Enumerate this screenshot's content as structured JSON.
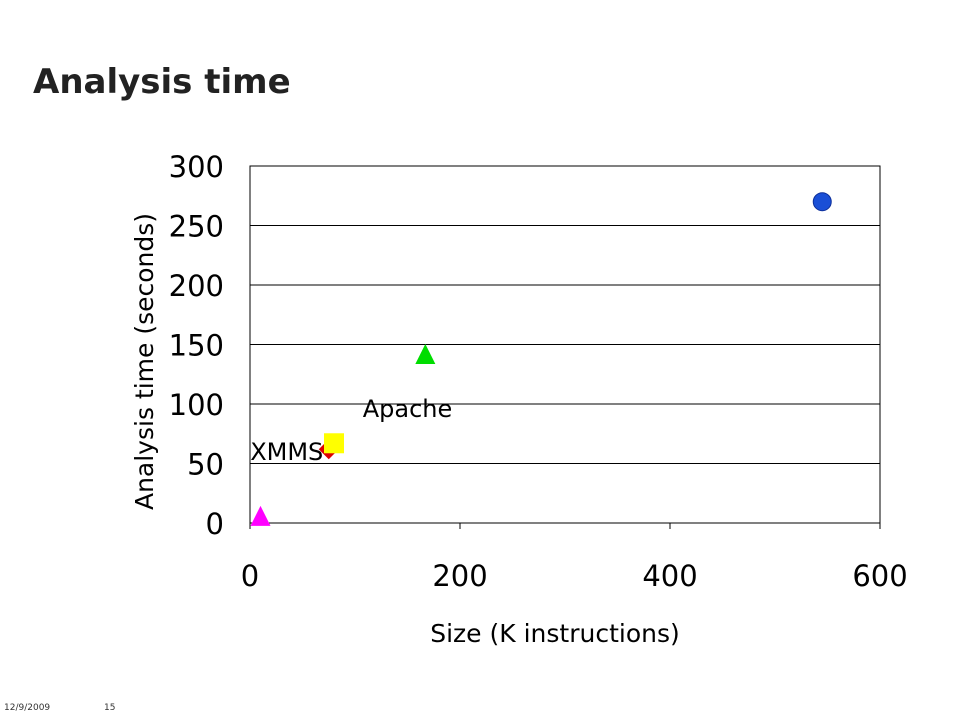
{
  "slide": {
    "title": "Analysis time",
    "footer_date": "12/9/2009",
    "footer_page": "15"
  },
  "chart_data": {
    "type": "scatter",
    "title": "",
    "xlabel": "Size (K instructions)",
    "ylabel": "Analysis time (seconds)",
    "xlim": [
      0,
      600
    ],
    "ylim": [
      0,
      300
    ],
    "xticks": [
      0,
      200,
      400,
      600
    ],
    "yticks": [
      0,
      50,
      100,
      150,
      200,
      250,
      300
    ],
    "grid": "horizontal",
    "points": [
      {
        "x": 10,
        "y": 6,
        "marker": "triangle",
        "color": "#ff00ff"
      },
      {
        "x": 75,
        "y": 62,
        "marker": "diamond",
        "color": "#dd0000"
      },
      {
        "x": 80,
        "y": 67,
        "marker": "square",
        "color": "#ffff00"
      },
      {
        "x": 167,
        "y": 142,
        "marker": "triangle",
        "color": "#00dd00"
      },
      {
        "x": 545,
        "y": 270,
        "marker": "circle",
        "color": "#1a4fd6"
      }
    ],
    "annotations": [
      {
        "text": "XMMS",
        "x": 35,
        "y": 53
      },
      {
        "text": "Apache",
        "x": 150,
        "y": 89
      }
    ]
  }
}
